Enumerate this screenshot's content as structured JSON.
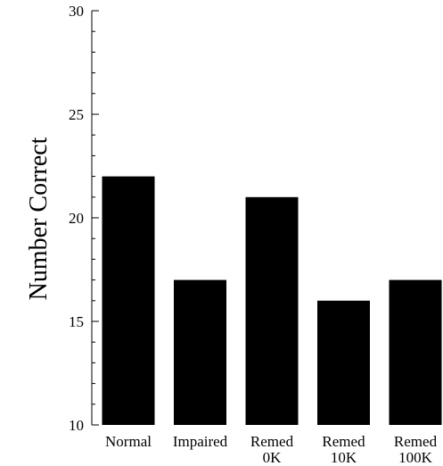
{
  "chart_data": {
    "type": "bar",
    "title": "",
    "xlabel": "",
    "ylabel": "Number Correct",
    "ylim": [
      10,
      30
    ],
    "yticks": [
      10,
      15,
      20,
      25,
      30
    ],
    "categories": [
      [
        "Normal"
      ],
      [
        "Impaired"
      ],
      [
        "Remed",
        "0K"
      ],
      [
        "Remed",
        "10K"
      ],
      [
        "Remed",
        "100K"
      ]
    ],
    "values": [
      22,
      17,
      21,
      16,
      17
    ],
    "bar_color": "#000000",
    "grid": false,
    "legend": "none"
  }
}
